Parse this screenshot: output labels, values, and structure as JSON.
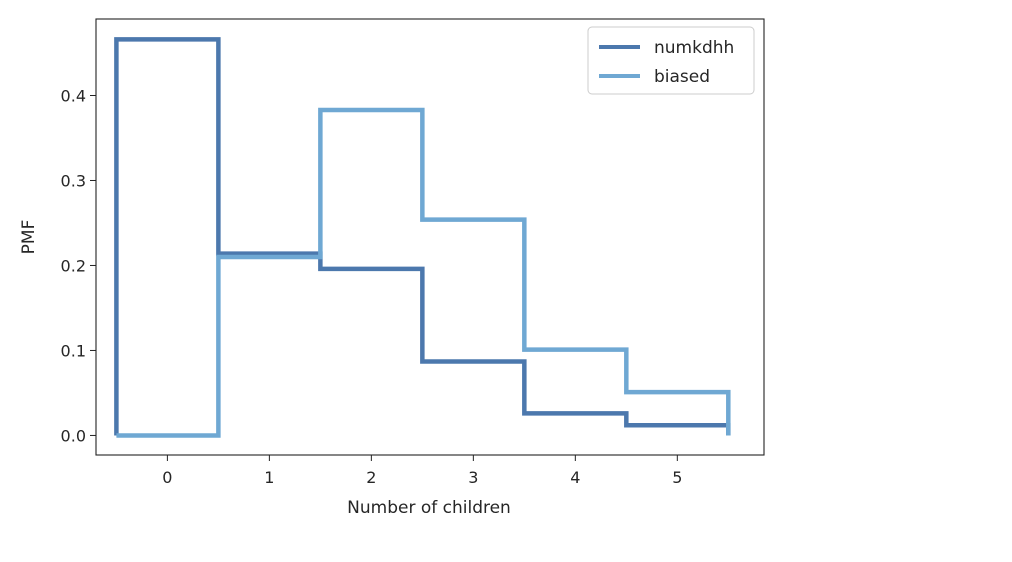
{
  "chart_data": {
    "type": "line",
    "drawstyle": "steps",
    "title": "",
    "xlabel": "Number of children",
    "ylabel": "PMF",
    "xlim": [
      -0.7,
      5.85
    ],
    "ylim": [
      -0.023,
      0.49
    ],
    "xticks": [
      0,
      1,
      2,
      3,
      4,
      5
    ],
    "xtick_labels": [
      "0",
      "1",
      "2",
      "3",
      "4",
      "5"
    ],
    "yticks": [
      0.0,
      0.1,
      0.2,
      0.3,
      0.4
    ],
    "ytick_labels": [
      "0.0",
      "0.1",
      "0.2",
      "0.3",
      "0.4"
    ],
    "legend_position": "top-right",
    "x": [
      0,
      1,
      2,
      3,
      4,
      5
    ],
    "series": [
      {
        "name": "numkdhh",
        "color": "#4c78ad",
        "values": [
          0.466,
          0.214,
          0.196,
          0.087,
          0.026,
          0.012
        ]
      },
      {
        "name": "biased",
        "color": "#6fa8d3",
        "values": [
          0.0,
          0.21,
          0.383,
          0.254,
          0.101,
          0.051
        ]
      }
    ]
  }
}
